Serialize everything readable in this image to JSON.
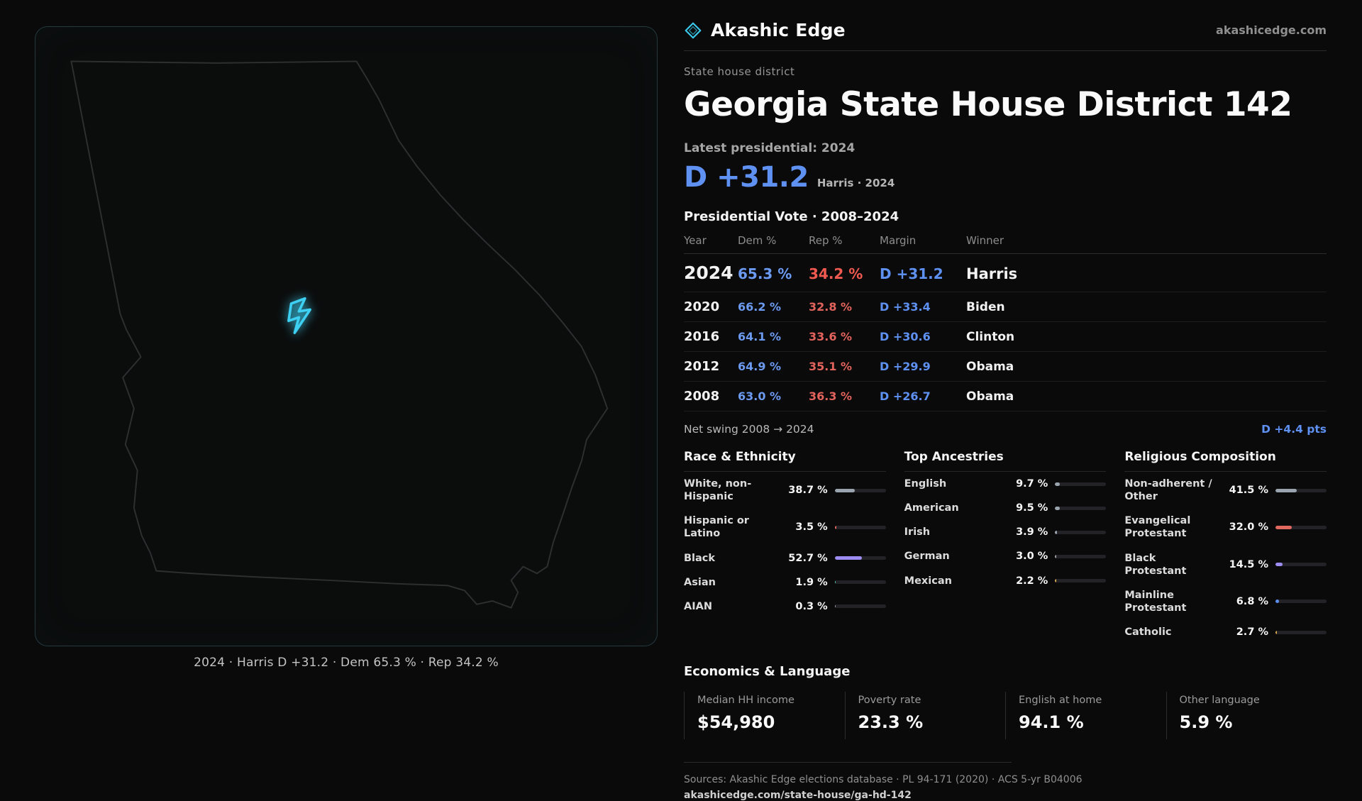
{
  "brand": {
    "name": "Akashic Edge",
    "domain": "akashicedge.com"
  },
  "map": {
    "caption": "2024 · Harris D +31.2 · Dem 65.3 % · Rep 34.2 %"
  },
  "header": {
    "kicker": "State house district",
    "title": "Georgia State House District 142"
  },
  "latest": {
    "label": "Latest presidential: 2024",
    "margin": "D +31.2",
    "sub": "Harris · 2024"
  },
  "table": {
    "title": "Presidential Vote · 2008–2024",
    "columns": [
      "Year",
      "Dem %",
      "Rep %",
      "Margin",
      "Winner"
    ],
    "rows": [
      {
        "year": "2024",
        "dem": "65.3 %",
        "rep": "34.2 %",
        "margin": "D +31.2",
        "winner": "Harris"
      },
      {
        "year": "2020",
        "dem": "66.2 %",
        "rep": "32.8 %",
        "margin": "D +33.4",
        "winner": "Biden"
      },
      {
        "year": "2016",
        "dem": "64.1 %",
        "rep": "33.6 %",
        "margin": "D +30.6",
        "winner": "Clinton"
      },
      {
        "year": "2012",
        "dem": "64.9 %",
        "rep": "35.1 %",
        "margin": "D +29.9",
        "winner": "Obama"
      },
      {
        "year": "2008",
        "dem": "63.0 %",
        "rep": "36.3 %",
        "margin": "D +26.7",
        "winner": "Obama"
      }
    ]
  },
  "swing": {
    "label": "Net swing 2008 → 2024",
    "value": "D +4.4 pts"
  },
  "demographics": {
    "race": {
      "title": "Race & Ethnicity",
      "items": [
        {
          "label": "White, non-Hispanic",
          "value": "38.7 %",
          "pct": 38.7,
          "color": "#9aa4ae"
        },
        {
          "label": "Hispanic or Latino",
          "value": "3.5 %",
          "pct": 3.5,
          "color": "#e0685f"
        },
        {
          "label": "Black",
          "value": "52.7 %",
          "pct": 52.7,
          "color": "#9d8df2"
        },
        {
          "label": "Asian",
          "value": "1.9 %",
          "pct": 1.9,
          "color": "#5cc9a7"
        },
        {
          "label": "AIAN",
          "value": "0.3 %",
          "pct": 0.3,
          "color": "#9aa4ae"
        }
      ]
    },
    "ancestries": {
      "title": "Top Ancestries",
      "items": [
        {
          "label": "English",
          "value": "9.7 %",
          "pct": 9.7,
          "color": "#9aa4ae"
        },
        {
          "label": "American",
          "value": "9.5 %",
          "pct": 9.5,
          "color": "#9aa4ae"
        },
        {
          "label": "Irish",
          "value": "3.9 %",
          "pct": 3.9,
          "color": "#9aa4ae"
        },
        {
          "label": "German",
          "value": "3.0 %",
          "pct": 3.0,
          "color": "#9aa4ae"
        },
        {
          "label": "Mexican",
          "value": "2.2 %",
          "pct": 2.2,
          "color": "#d9a84e"
        }
      ]
    },
    "religion": {
      "title": "Religious Composition",
      "items": [
        {
          "label": "Non-adherent / Other",
          "value": "41.5 %",
          "pct": 41.5,
          "color": "#9aa4ae"
        },
        {
          "label": "Evangelical Protestant",
          "value": "32.0 %",
          "pct": 32.0,
          "color": "#e0685f"
        },
        {
          "label": "Black Protestant",
          "value": "14.5 %",
          "pct": 14.5,
          "color": "#9d8df2"
        },
        {
          "label": "Mainline Protestant",
          "value": "6.8 %",
          "pct": 6.8,
          "color": "#5b8ff0"
        },
        {
          "label": "Catholic",
          "value": "2.7 %",
          "pct": 2.7,
          "color": "#d9a84e"
        }
      ]
    }
  },
  "economics": {
    "title": "Economics & Language",
    "stats": [
      {
        "label": "Median HH income",
        "value": "$54,980"
      },
      {
        "label": "Poverty rate",
        "value": "23.3 %"
      },
      {
        "label": "English at home",
        "value": "94.1 %"
      },
      {
        "label": "Other language",
        "value": "5.9 %"
      }
    ]
  },
  "footer": {
    "sources": "Sources: Akashic Edge elections database · PL 94-171 (2020) · ACS 5-yr B04006",
    "url": "akashicedge.com/state-house/ga-hd-142"
  },
  "chart_data": [
    {
      "type": "table",
      "title": "Presidential Vote · 2008–2024",
      "columns": [
        "Year",
        "Dem %",
        "Rep %",
        "Margin",
        "Winner"
      ],
      "rows": [
        [
          2024,
          65.3,
          34.2,
          "D +31.2",
          "Harris"
        ],
        [
          2020,
          66.2,
          32.8,
          "D +33.4",
          "Biden"
        ],
        [
          2016,
          64.1,
          33.6,
          "D +30.6",
          "Clinton"
        ],
        [
          2012,
          64.9,
          35.1,
          "D +29.9",
          "Obama"
        ],
        [
          2008,
          63.0,
          36.3,
          "D +26.7",
          "Obama"
        ]
      ],
      "net_swing_2008_to_2024": "D +4.4 pts"
    },
    {
      "type": "bar",
      "title": "Race & Ethnicity",
      "categories": [
        "White, non-Hispanic",
        "Hispanic or Latino",
        "Black",
        "Asian",
        "AIAN"
      ],
      "values": [
        38.7,
        3.5,
        52.7,
        1.9,
        0.3
      ],
      "unit": "%",
      "xlim": [
        0,
        100
      ]
    },
    {
      "type": "bar",
      "title": "Top Ancestries",
      "categories": [
        "English",
        "American",
        "Irish",
        "German",
        "Mexican"
      ],
      "values": [
        9.7,
        9.5,
        3.9,
        3.0,
        2.2
      ],
      "unit": "%",
      "xlim": [
        0,
        100
      ]
    },
    {
      "type": "bar",
      "title": "Religious Composition",
      "categories": [
        "Non-adherent / Other",
        "Evangelical Protestant",
        "Black Protestant",
        "Mainline Protestant",
        "Catholic"
      ],
      "values": [
        41.5,
        32.0,
        14.5,
        6.8,
        2.7
      ],
      "unit": "%",
      "xlim": [
        0,
        100
      ]
    }
  ]
}
